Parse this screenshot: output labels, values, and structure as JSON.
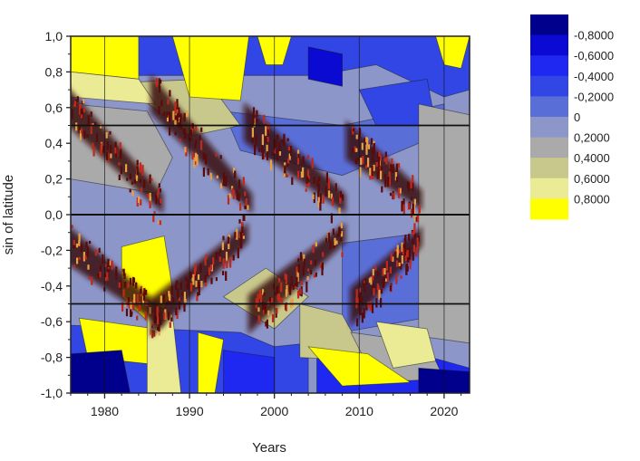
{
  "chart_data": {
    "type": "heatmap",
    "title": "",
    "xlabel": "Years",
    "ylabel": "sin of latitude",
    "xlim": [
      1976,
      2023
    ],
    "ylim": [
      -1.0,
      1.0
    ],
    "x_ticks": [
      {
        "value": 1980,
        "label": "1980"
      },
      {
        "value": 1990,
        "label": "1990"
      },
      {
        "value": 2000,
        "label": "2000"
      },
      {
        "value": 2010,
        "label": "2010"
      },
      {
        "value": 2020,
        "label": "2020"
      }
    ],
    "y_ticks": [
      {
        "value": 1.0,
        "label": "1,0"
      },
      {
        "value": 0.8,
        "label": "0,8"
      },
      {
        "value": 0.6,
        "label": "0,6"
      },
      {
        "value": 0.4,
        "label": "0,4"
      },
      {
        "value": 0.2,
        "label": "0,2"
      },
      {
        "value": 0.0,
        "label": "0,0"
      },
      {
        "value": -0.2,
        "label": "-0,2"
      },
      {
        "value": -0.4,
        "label": "-0,4"
      },
      {
        "value": -0.6,
        "label": "-0,6"
      },
      {
        "value": -0.8,
        "label": "-0,8"
      },
      {
        "value": -1.0,
        "label": "-1,0"
      }
    ],
    "reference_lines": {
      "horizontal": [
        0.5,
        0.0,
        -0.5
      ],
      "vertical": [
        1980,
        1990,
        2000,
        2010,
        2020
      ]
    },
    "legend": {
      "position": "right",
      "levels": [
        {
          "label": "",
          "color": "#00008c"
        },
        {
          "label": "-0,8000",
          "color": "#0a0ad2"
        },
        {
          "label": "-0,6000",
          "color": "#1e28f0"
        },
        {
          "label": "-0,4000",
          "color": "#3246e6"
        },
        {
          "label": "-0,2000",
          "color": "#5a6ed7"
        },
        {
          "label": "0",
          "color": "#8c96c8"
        },
        {
          "label": "0,2000",
          "color": "#aaaaaa"
        },
        {
          "label": "0,4000",
          "color": "#c8c88c"
        },
        {
          "label": "0,6000",
          "color": "#ebeb96"
        },
        {
          "label": "0,8000",
          "color": "#ffff00"
        }
      ]
    },
    "butterfly_wings": [
      {
        "cycle": 1,
        "hemisphere": "north",
        "start": 1976.0,
        "end": 1986.5,
        "lat_start": 0.62,
        "lat_end": 0.06
      },
      {
        "cycle": 1,
        "hemisphere": "south",
        "start": 1976.0,
        "end": 1986.5,
        "lat_start": -0.16,
        "lat_end": -0.58
      },
      {
        "cycle": 2,
        "hemisphere": "north",
        "start": 1986.0,
        "end": 1997.0,
        "lat_start": 0.68,
        "lat_end": 0.06
      },
      {
        "cycle": 2,
        "hemisphere": "south",
        "start": 1986.0,
        "end": 1996.5,
        "lat_start": -0.58,
        "lat_end": -0.1
      },
      {
        "cycle": 3,
        "hemisphere": "north",
        "start": 1997.0,
        "end": 2008.0,
        "lat_start": 0.52,
        "lat_end": 0.06
      },
      {
        "cycle": 3,
        "hemisphere": "south",
        "start": 1997.5,
        "end": 2008.0,
        "lat_start": -0.56,
        "lat_end": -0.1
      },
      {
        "cycle": 4,
        "hemisphere": "north",
        "start": 2009.0,
        "end": 2017.0,
        "lat_start": 0.42,
        "lat_end": 0.08
      },
      {
        "cycle": 4,
        "hemisphere": "south",
        "start": 2009.5,
        "end": 2017.0,
        "lat_start": -0.52,
        "lat_end": -0.12
      }
    ]
  }
}
